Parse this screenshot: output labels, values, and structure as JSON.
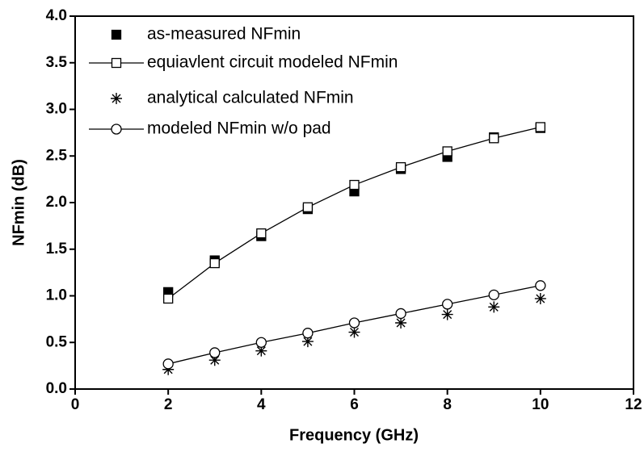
{
  "chart_data": {
    "type": "scatter",
    "xlabel": "Frequency (GHz)",
    "ylabel": "NFmin (dB)",
    "xlim": [
      0,
      12
    ],
    "xticks": [
      0,
      2,
      4,
      6,
      8,
      10,
      12
    ],
    "ylim": [
      0,
      4
    ],
    "yticks": [
      {
        "value": 0,
        "label": "0.0"
      },
      0.5,
      {
        "value": 1,
        "label": "1.0"
      },
      1.5,
      {
        "value": 2,
        "label": "2.0"
      },
      2.5,
      {
        "value": 3,
        "label": "3.0"
      },
      3.5,
      {
        "value": 4,
        "label": "4.0"
      }
    ],
    "legend": "upper left",
    "series": [
      {
        "name": "as-measured NFmin",
        "color": "#000000",
        "marker": "filled-square",
        "line": false,
        "x": [
          2,
          3,
          4,
          5,
          6,
          7,
          8,
          9,
          10
        ],
        "values": [
          1.04,
          1.38,
          1.64,
          1.93,
          2.12,
          2.36,
          2.49,
          2.7,
          2.8
        ]
      },
      {
        "name": "equiavlent circuit modeled NFmin",
        "color": "#000000",
        "marker": "open-square",
        "line": true,
        "x": [
          2,
          3,
          4,
          5,
          6,
          7,
          8,
          9,
          10
        ],
        "values": [
          0.97,
          1.35,
          1.67,
          1.95,
          2.19,
          2.38,
          2.55,
          2.69,
          2.81
        ]
      },
      {
        "name": "analytical calculated NFmin",
        "color": "#000000",
        "marker": "asterisk",
        "line": false,
        "x": [
          2,
          3,
          4,
          5,
          6,
          7,
          8,
          9,
          10
        ],
        "values": [
          0.21,
          0.31,
          0.41,
          0.51,
          0.61,
          0.71,
          0.8,
          0.88,
          0.97
        ]
      },
      {
        "name": "modeled NFmin w/o pad",
        "color": "#000000",
        "marker": "open-circle",
        "line": true,
        "x": [
          2,
          3,
          4,
          5,
          6,
          7,
          8,
          9,
          10
        ],
        "values": [
          0.27,
          0.39,
          0.5,
          0.6,
          0.71,
          0.81,
          0.91,
          1.01,
          1.11
        ]
      }
    ]
  }
}
